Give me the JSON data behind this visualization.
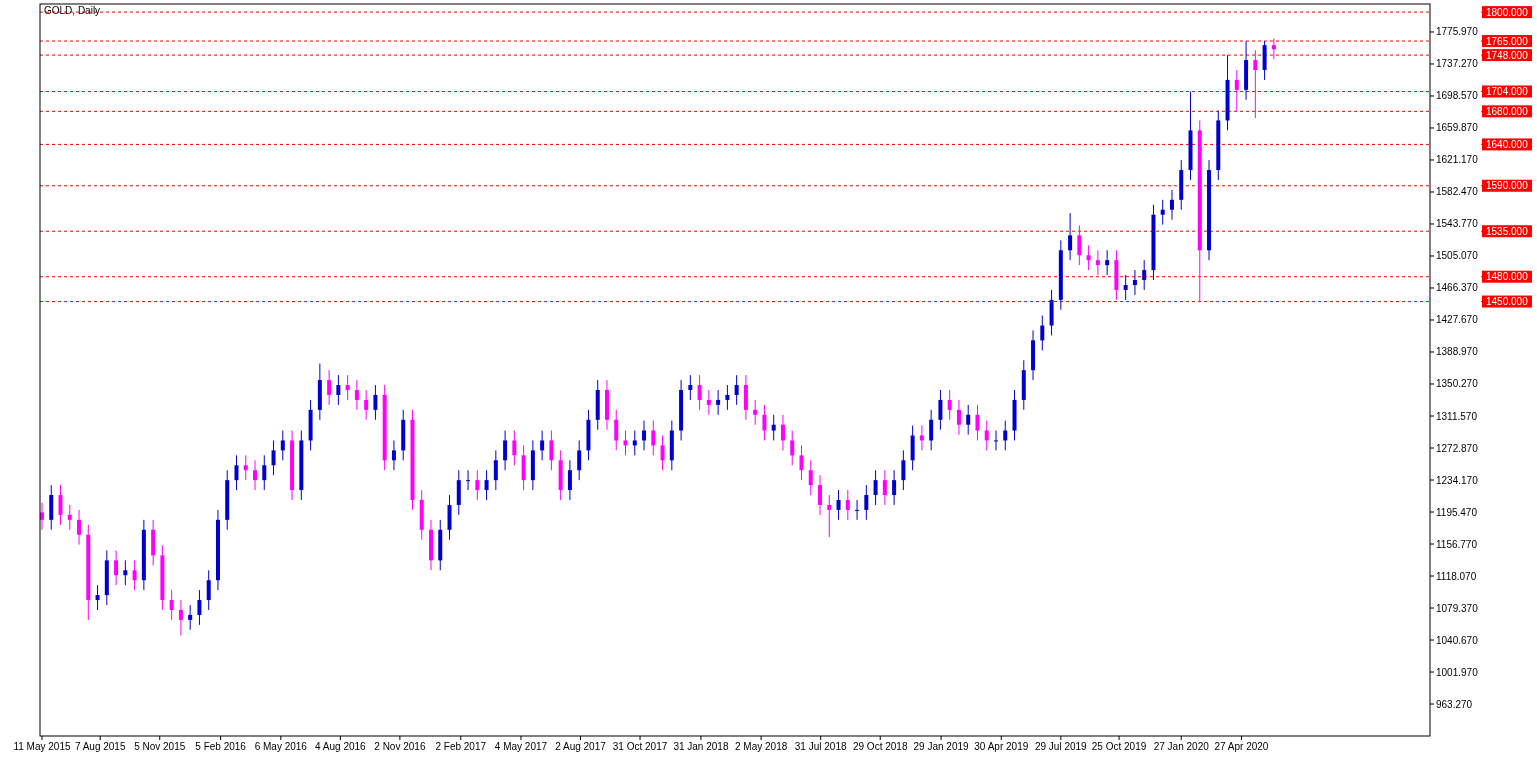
{
  "chart_data": {
    "type": "candlestick",
    "title": "GOLD, Daily",
    "x": [
      "2015-05-11",
      "2015-05-25",
      "2015-06-08",
      "2015-06-22",
      "2015-07-06",
      "2015-07-20",
      "2015-08-03",
      "2015-08-17",
      "2015-08-31",
      "2015-09-14",
      "2015-09-28",
      "2015-10-12",
      "2015-10-26",
      "2015-11-09",
      "2015-11-23",
      "2015-12-07",
      "2015-12-21",
      "2016-01-04",
      "2016-01-18",
      "2016-02-01",
      "2016-02-15",
      "2016-02-29",
      "2016-03-14",
      "2016-03-28",
      "2016-04-11",
      "2016-04-25",
      "2016-05-09",
      "2016-05-23",
      "2016-06-06",
      "2016-06-20",
      "2016-07-04",
      "2016-07-18",
      "2016-08-01",
      "2016-08-15",
      "2016-08-29",
      "2016-09-12",
      "2016-09-26",
      "2016-10-10",
      "2016-10-24",
      "2016-11-07",
      "2016-11-21",
      "2016-12-05",
      "2016-12-19",
      "2017-01-02",
      "2017-01-16",
      "2017-01-30",
      "2017-02-13",
      "2017-02-27",
      "2017-03-13",
      "2017-03-27",
      "2017-04-10",
      "2017-04-24",
      "2017-05-08",
      "2017-05-22",
      "2017-06-05",
      "2017-06-19",
      "2017-07-03",
      "2017-07-17",
      "2017-07-31",
      "2017-08-14",
      "2017-08-28",
      "2017-09-11",
      "2017-09-25",
      "2017-10-09",
      "2017-10-23",
      "2017-11-06",
      "2017-11-20",
      "2017-12-04",
      "2017-12-18",
      "2018-01-01",
      "2018-01-15",
      "2018-01-29",
      "2018-02-12",
      "2018-02-26",
      "2018-03-12",
      "2018-03-26",
      "2018-04-09",
      "2018-04-23",
      "2018-05-07",
      "2018-05-21",
      "2018-06-04",
      "2018-06-18",
      "2018-07-02",
      "2018-07-16",
      "2018-07-30",
      "2018-08-13",
      "2018-08-27",
      "2018-09-10",
      "2018-09-24",
      "2018-10-08",
      "2018-10-22",
      "2018-11-05",
      "2018-11-19",
      "2018-12-03",
      "2018-12-17",
      "2018-12-31",
      "2019-01-14",
      "2019-01-28",
      "2019-02-11",
      "2019-02-25",
      "2019-03-11",
      "2019-03-25",
      "2019-04-08",
      "2019-04-22",
      "2019-05-06",
      "2019-05-20",
      "2019-06-03",
      "2019-06-17",
      "2019-07-01",
      "2019-07-15",
      "2019-07-29",
      "2019-08-12",
      "2019-08-26",
      "2019-09-09",
      "2019-09-23",
      "2019-10-07",
      "2019-10-21",
      "2019-11-04",
      "2019-11-18",
      "2019-12-02",
      "2019-12-16",
      "2019-12-30",
      "2020-01-13",
      "2020-01-27",
      "2020-02-10",
      "2020-02-24",
      "2020-03-09",
      "2020-03-23",
      "2020-04-06",
      "2020-04-20",
      "2020-05-04",
      "2020-05-18",
      "2020-06-01",
      "2020-06-15"
    ],
    "ohlc": [
      [
        1195,
        1207,
        1174,
        1186
      ],
      [
        1186,
        1228,
        1174,
        1216
      ],
      [
        1216,
        1228,
        1180,
        1192
      ],
      [
        1192,
        1204,
        1174,
        1186
      ],
      [
        1186,
        1198,
        1156,
        1168
      ],
      [
        1168,
        1180,
        1065,
        1089
      ],
      [
        1089,
        1107,
        1077,
        1095
      ],
      [
        1095,
        1149,
        1083,
        1137
      ],
      [
        1137,
        1149,
        1107,
        1119
      ],
      [
        1119,
        1137,
        1107,
        1125
      ],
      [
        1125,
        1137,
        1101,
        1113
      ],
      [
        1113,
        1186,
        1101,
        1174
      ],
      [
        1174,
        1186,
        1131,
        1143
      ],
      [
        1143,
        1155,
        1077,
        1089
      ],
      [
        1089,
        1101,
        1065,
        1077
      ],
      [
        1077,
        1089,
        1046,
        1065
      ],
      [
        1065,
        1083,
        1053,
        1071
      ],
      [
        1071,
        1101,
        1059,
        1089
      ],
      [
        1089,
        1125,
        1077,
        1113
      ],
      [
        1113,
        1198,
        1101,
        1186
      ],
      [
        1186,
        1246,
        1174,
        1234
      ],
      [
        1234,
        1264,
        1222,
        1252
      ],
      [
        1252,
        1264,
        1234,
        1246
      ],
      [
        1246,
        1258,
        1222,
        1234
      ],
      [
        1234,
        1264,
        1222,
        1252
      ],
      [
        1252,
        1282,
        1240,
        1270
      ],
      [
        1270,
        1294,
        1258,
        1282
      ],
      [
        1282,
        1294,
        1210,
        1222
      ],
      [
        1222,
        1294,
        1210,
        1282
      ],
      [
        1282,
        1331,
        1270,
        1319
      ],
      [
        1319,
        1375,
        1307,
        1355
      ],
      [
        1355,
        1367,
        1325,
        1337
      ],
      [
        1337,
        1361,
        1325,
        1349
      ],
      [
        1349,
        1361,
        1331,
        1343
      ],
      [
        1343,
        1355,
        1319,
        1331
      ],
      [
        1331,
        1343,
        1307,
        1319
      ],
      [
        1319,
        1349,
        1307,
        1337
      ],
      [
        1337,
        1349,
        1246,
        1258
      ],
      [
        1258,
        1282,
        1246,
        1270
      ],
      [
        1270,
        1319,
        1258,
        1307
      ],
      [
        1307,
        1319,
        1198,
        1210
      ],
      [
        1210,
        1222,
        1162,
        1174
      ],
      [
        1174,
        1186,
        1125,
        1137
      ],
      [
        1137,
        1186,
        1125,
        1174
      ],
      [
        1174,
        1216,
        1162,
        1204
      ],
      [
        1204,
        1246,
        1192,
        1234
      ],
      [
        1234,
        1246,
        1222,
        1234
      ],
      [
        1234,
        1246,
        1210,
        1222
      ],
      [
        1222,
        1246,
        1210,
        1234
      ],
      [
        1234,
        1270,
        1222,
        1258
      ],
      [
        1258,
        1294,
        1246,
        1282
      ],
      [
        1282,
        1294,
        1252,
        1264
      ],
      [
        1264,
        1276,
        1222,
        1234
      ],
      [
        1234,
        1282,
        1222,
        1270
      ],
      [
        1270,
        1294,
        1258,
        1282
      ],
      [
        1282,
        1294,
        1246,
        1258
      ],
      [
        1258,
        1270,
        1210,
        1222
      ],
      [
        1222,
        1258,
        1210,
        1246
      ],
      [
        1246,
        1282,
        1234,
        1270
      ],
      [
        1270,
        1319,
        1258,
        1307
      ],
      [
        1307,
        1355,
        1295,
        1343
      ],
      [
        1343,
        1355,
        1295,
        1307
      ],
      [
        1307,
        1319,
        1270,
        1282
      ],
      [
        1282,
        1294,
        1264,
        1276
      ],
      [
        1276,
        1294,
        1264,
        1282
      ],
      [
        1282,
        1306,
        1270,
        1294
      ],
      [
        1294,
        1306,
        1264,
        1276
      ],
      [
        1276,
        1288,
        1246,
        1258
      ],
      [
        1258,
        1306,
        1246,
        1294
      ],
      [
        1294,
        1355,
        1282,
        1343
      ],
      [
        1343,
        1361,
        1331,
        1349
      ],
      [
        1349,
        1361,
        1319,
        1331
      ],
      [
        1331,
        1343,
        1313,
        1325
      ],
      [
        1325,
        1343,
        1313,
        1331
      ],
      [
        1331,
        1349,
        1319,
        1337
      ],
      [
        1337,
        1361,
        1325,
        1349
      ],
      [
        1349,
        1361,
        1307,
        1319
      ],
      [
        1319,
        1331,
        1301,
        1313
      ],
      [
        1313,
        1325,
        1282,
        1294
      ],
      [
        1294,
        1313,
        1282,
        1301
      ],
      [
        1301,
        1313,
        1270,
        1282
      ],
      [
        1282,
        1294,
        1252,
        1264
      ],
      [
        1264,
        1276,
        1234,
        1246
      ],
      [
        1246,
        1258,
        1216,
        1228
      ],
      [
        1228,
        1240,
        1192,
        1204
      ],
      [
        1204,
        1216,
        1165,
        1198
      ],
      [
        1198,
        1222,
        1186,
        1210
      ],
      [
        1210,
        1222,
        1186,
        1198
      ],
      [
        1198,
        1210,
        1186,
        1198
      ],
      [
        1198,
        1228,
        1186,
        1216
      ],
      [
        1216,
        1246,
        1204,
        1234
      ],
      [
        1234,
        1246,
        1204,
        1216
      ],
      [
        1216,
        1246,
        1204,
        1234
      ],
      [
        1234,
        1270,
        1222,
        1258
      ],
      [
        1258,
        1300,
        1246,
        1288
      ],
      [
        1288,
        1300,
        1270,
        1282
      ],
      [
        1282,
        1319,
        1270,
        1307
      ],
      [
        1307,
        1343,
        1295,
        1331
      ],
      [
        1331,
        1343,
        1307,
        1319
      ],
      [
        1319,
        1331,
        1289,
        1301
      ],
      [
        1301,
        1325,
        1289,
        1313
      ],
      [
        1313,
        1325,
        1282,
        1294
      ],
      [
        1294,
        1306,
        1270,
        1282
      ],
      [
        1282,
        1294,
        1270,
        1282
      ],
      [
        1282,
        1306,
        1270,
        1294
      ],
      [
        1294,
        1343,
        1282,
        1331
      ],
      [
        1331,
        1379,
        1319,
        1367
      ],
      [
        1367,
        1415,
        1355,
        1403
      ],
      [
        1403,
        1433,
        1391,
        1421
      ],
      [
        1421,
        1464,
        1409,
        1452
      ],
      [
        1452,
        1524,
        1440,
        1512
      ],
      [
        1512,
        1557,
        1500,
        1530
      ],
      [
        1530,
        1542,
        1494,
        1506
      ],
      [
        1506,
        1518,
        1488,
        1500
      ],
      [
        1500,
        1512,
        1482,
        1494
      ],
      [
        1494,
        1512,
        1482,
        1500
      ],
      [
        1500,
        1512,
        1452,
        1464
      ],
      [
        1464,
        1482,
        1452,
        1470
      ],
      [
        1470,
        1488,
        1458,
        1476
      ],
      [
        1476,
        1500,
        1464,
        1488
      ],
      [
        1488,
        1567,
        1476,
        1555
      ],
      [
        1555,
        1573,
        1543,
        1561
      ],
      [
        1561,
        1585,
        1549,
        1573
      ],
      [
        1573,
        1621,
        1561,
        1609
      ],
      [
        1609,
        1704,
        1597,
        1657
      ],
      [
        1657,
        1669,
        1450,
        1512
      ],
      [
        1512,
        1621,
        1500,
        1609
      ],
      [
        1609,
        1681,
        1597,
        1669
      ],
      [
        1669,
        1748,
        1657,
        1718
      ],
      [
        1718,
        1730,
        1680,
        1706
      ],
      [
        1706,
        1765,
        1694,
        1742
      ],
      [
        1742,
        1754,
        1672,
        1730
      ],
      [
        1730,
        1765,
        1718,
        1760
      ],
      [
        1760,
        1768,
        1743,
        1755
      ]
    ],
    "colors": [
      "#ff00ff",
      "#0000cd",
      "#ff00ff",
      "#ff00ff",
      "#ff00ff",
      "#ff00ff",
      "#0000cd",
      "#0000cd",
      "#ff00ff",
      "#0000cd",
      "#ff00ff",
      "#0000cd",
      "#ff00ff",
      "#ff00ff",
      "#ff00ff",
      "#ff00ff",
      "#0000cd",
      "#0000cd",
      "#0000cd",
      "#0000cd",
      "#0000cd",
      "#0000cd",
      "#ff00ff",
      "#ff00ff",
      "#0000cd",
      "#0000cd",
      "#0000cd",
      "#ff00ff",
      "#0000cd",
      "#0000cd",
      "#0000cd",
      "#ff00ff",
      "#0000cd",
      "#ff00ff",
      "#ff00ff",
      "#ff00ff",
      "#0000cd",
      "#ff00ff",
      "#0000cd",
      "#0000cd",
      "#ff00ff",
      "#ff00ff",
      "#ff00ff",
      "#0000cd",
      "#0000cd",
      "#0000cd",
      "#0000cd",
      "#ff00ff",
      "#0000cd",
      "#0000cd",
      "#0000cd",
      "#ff00ff",
      "#ff00ff",
      "#0000cd",
      "#0000cd",
      "#ff00ff",
      "#ff00ff",
      "#0000cd",
      "#0000cd",
      "#0000cd",
      "#0000cd",
      "#ff00ff",
      "#ff00ff",
      "#ff00ff",
      "#0000cd",
      "#0000cd",
      "#ff00ff",
      "#ff00ff",
      "#0000cd",
      "#0000cd",
      "#0000cd",
      "#ff00ff",
      "#ff00ff",
      "#0000cd",
      "#0000cd",
      "#0000cd",
      "#ff00ff",
      "#ff00ff",
      "#ff00ff",
      "#0000cd",
      "#ff00ff",
      "#ff00ff",
      "#ff00ff",
      "#ff00ff",
      "#ff00ff",
      "#ff00ff",
      "#0000cd",
      "#ff00ff",
      "#0000cd",
      "#0000cd",
      "#0000cd",
      "#ff00ff",
      "#0000cd",
      "#0000cd",
      "#0000cd",
      "#ff00ff",
      "#0000cd",
      "#0000cd",
      "#ff00ff",
      "#ff00ff",
      "#0000cd",
      "#ff00ff",
      "#ff00ff",
      "#0000cd",
      "#0000cd",
      "#0000cd",
      "#0000cd",
      "#0000cd",
      "#0000cd",
      "#0000cd",
      "#0000cd",
      "#0000cd",
      "#ff00ff",
      "#ff00ff",
      "#ff00ff",
      "#0000cd",
      "#ff00ff",
      "#0000cd",
      "#0000cd",
      "#0000cd",
      "#0000cd",
      "#0000cd",
      "#0000cd",
      "#0000cd",
      "#0000cd",
      "#ff00ff",
      "#0000cd",
      "#0000cd",
      "#0000cd",
      "#ff00ff",
      "#0000cd",
      "#ff00ff",
      "#0000cd",
      "#ff00ff"
    ],
    "xlim": [
      "2015-05-08",
      "2021-02-06"
    ],
    "xticks": [
      {
        "value": "2015-05-11",
        "label": "11 May 2015"
      },
      {
        "value": "2015-08-07",
        "label": "7 Aug 2015"
      },
      {
        "value": "2015-11-05",
        "label": "5 Nov 2015"
      },
      {
        "value": "2016-02-05",
        "label": "5 Feb 2016"
      },
      {
        "value": "2016-05-06",
        "label": "6 May 2016"
      },
      {
        "value": "2016-08-04",
        "label": "4 Aug 2016"
      },
      {
        "value": "2016-11-02",
        "label": "2 Nov 2016"
      },
      {
        "value": "2017-02-02",
        "label": "2 Feb 2017"
      },
      {
        "value": "2017-05-04",
        "label": "4 May 2017"
      },
      {
        "value": "2017-08-02",
        "label": "2 Aug 2017"
      },
      {
        "value": "2017-10-31",
        "label": "31 Oct 2017"
      },
      {
        "value": "2018-01-31",
        "label": "31 Jan 2018"
      },
      {
        "value": "2018-05-02",
        "label": "2 May 2018"
      },
      {
        "value": "2018-07-31",
        "label": "31 Jul 2018"
      },
      {
        "value": "2018-10-29",
        "label": "29 Oct 2018"
      },
      {
        "value": "2019-01-29",
        "label": "29 Jan 2019"
      },
      {
        "value": "2019-04-30",
        "label": "30 Apr 2019"
      },
      {
        "value": "2019-07-29",
        "label": "29 Jul 2019"
      },
      {
        "value": "2019-10-25",
        "label": "25 Oct 2019"
      },
      {
        "value": "2020-01-27",
        "label": "27 Jan 2020"
      },
      {
        "value": "2020-04-27",
        "label": "27 Apr 2020"
      }
    ],
    "ylim": [
      924.6,
      1809.8
    ],
    "yticks": [
      {
        "value": 963.27,
        "label": "963.270"
      },
      {
        "value": 1001.97,
        "label": "1001.970"
      },
      {
        "value": 1040.67,
        "label": "1040.670"
      },
      {
        "value": 1079.37,
        "label": "1079.370"
      },
      {
        "value": 1118.07,
        "label": "1118.070"
      },
      {
        "value": 1156.77,
        "label": "1156.770"
      },
      {
        "value": 1195.47,
        "label": "1195.470"
      },
      {
        "value": 1234.17,
        "label": "1234.170"
      },
      {
        "value": 1272.87,
        "label": "1272.870"
      },
      {
        "value": 1311.57,
        "label": "1311.570"
      },
      {
        "value": 1350.27,
        "label": "1350.270"
      },
      {
        "value": 1388.97,
        "label": "1388.970"
      },
      {
        "value": 1427.67,
        "label": "1427.670"
      },
      {
        "value": 1466.37,
        "label": "1466.370"
      },
      {
        "value": 1505.07,
        "label": "1505.070"
      },
      {
        "value": 1543.77,
        "label": "1543.770"
      },
      {
        "value": 1582.47,
        "label": "1582.470"
      },
      {
        "value": 1621.17,
        "label": "1621.170"
      },
      {
        "value": 1659.87,
        "label": "1659.870"
      },
      {
        "value": 1698.57,
        "label": "1698.570"
      },
      {
        "value": 1737.27,
        "label": "1737.270"
      },
      {
        "value": 1775.97,
        "label": "1775.970"
      }
    ],
    "ref_lines": [
      {
        "axis": "y",
        "value": 1800,
        "label": "1800.000",
        "color": "#ff0000",
        "line_style": "dashed"
      },
      {
        "axis": "y",
        "value": 1765,
        "label": "1765.000",
        "color": "#ff0000",
        "line_style": "dashed"
      },
      {
        "axis": "y",
        "value": 1748,
        "label": "1748.000",
        "color": "#ff0000",
        "line_style": "dashed"
      },
      {
        "axis": "y",
        "value": 1704,
        "label": "1704.000",
        "color": "#ff0000",
        "line_style": "dashed"
      },
      {
        "axis": "y",
        "value": 1680,
        "label": "1680.000",
        "color": "#ff0000",
        "line_style": "dashed"
      },
      {
        "axis": "y",
        "value": 1640,
        "label": "1640.000",
        "color": "#ff0000",
        "line_style": "dashed"
      },
      {
        "axis": "y",
        "value": 1590,
        "label": "1590.000",
        "color": "#ff0000",
        "line_style": "dashed"
      },
      {
        "axis": "y",
        "value": 1535,
        "label": "1535.000",
        "color": "#ff0000",
        "line_style": "dashed"
      },
      {
        "axis": "y",
        "value": 1480,
        "label": "1480.000",
        "color": "#ff0000",
        "line_style": "dashed"
      },
      {
        "axis": "y",
        "value": 1450,
        "label": "1450.000",
        "color": "#ff0000",
        "line_style": "dashed"
      }
    ],
    "grid": false
  }
}
